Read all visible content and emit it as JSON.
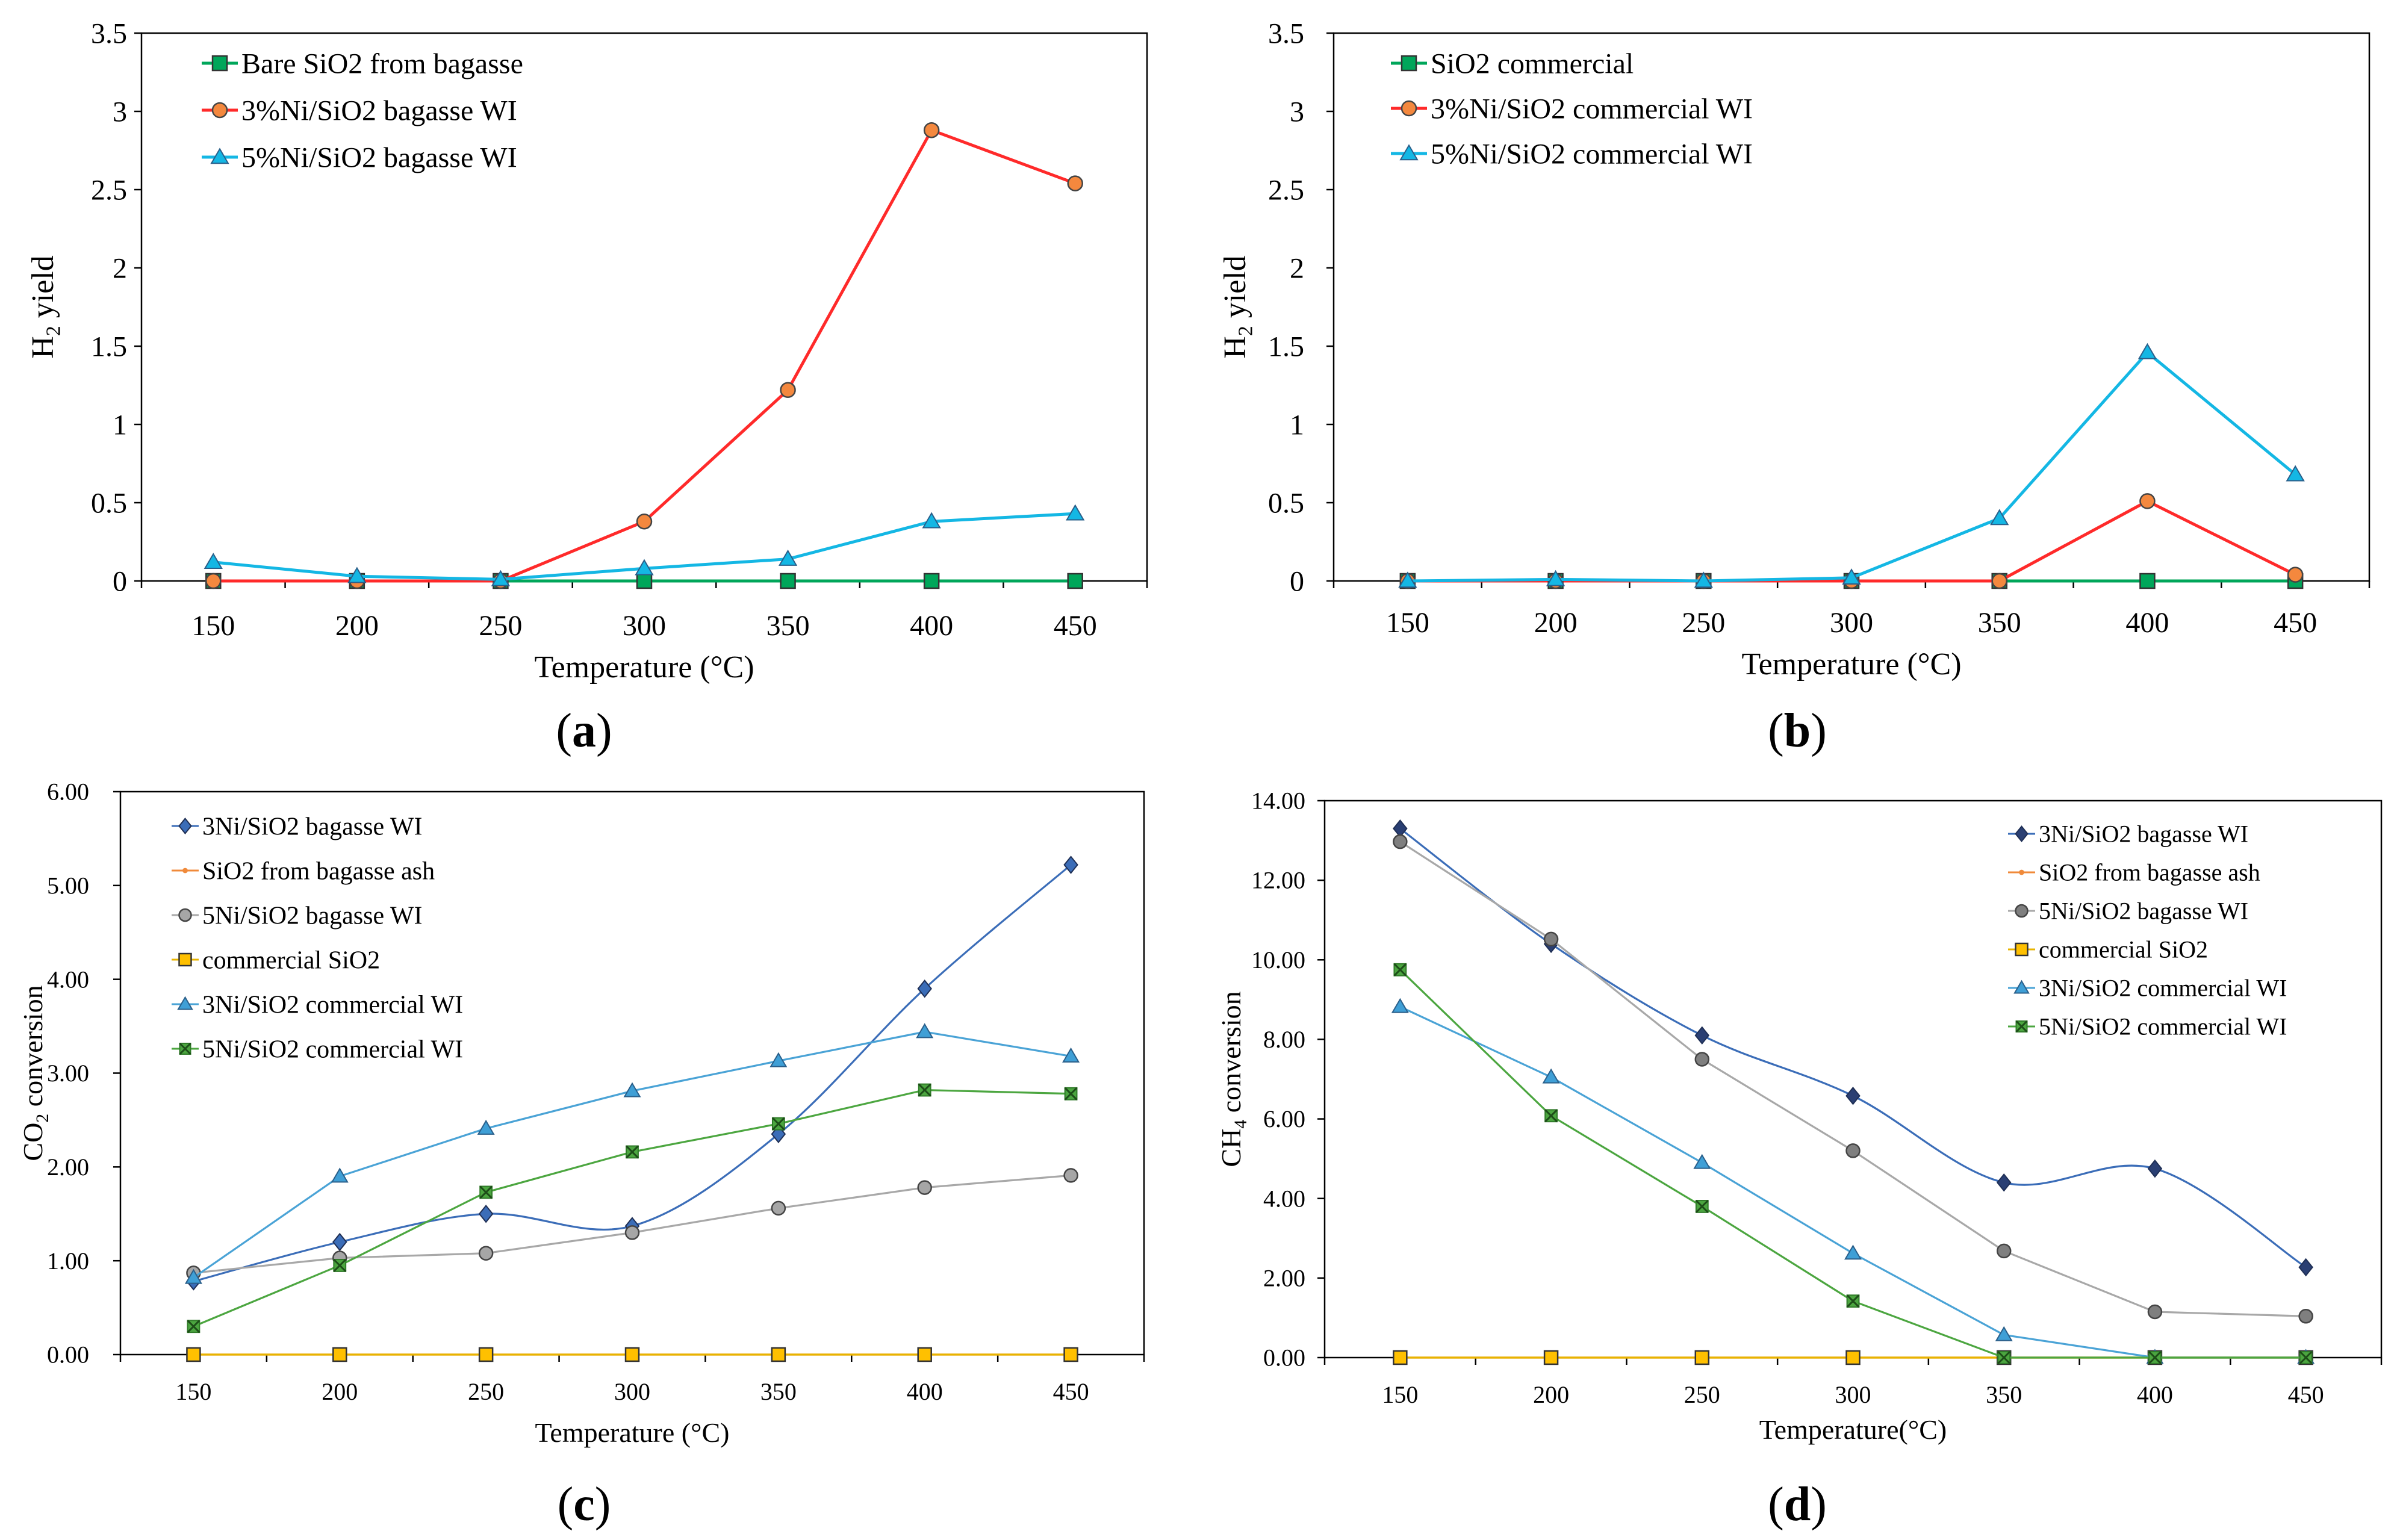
{
  "chart_data": [
    {
      "panel": "a",
      "caption_letter": "a",
      "type": "line",
      "xlabel": "Temperature (°C)",
      "ylabel_main": "H",
      "ylabel_sub": "2",
      "ylabel_rest": " yield",
      "x": [
        150,
        200,
        250,
        300,
        350,
        400,
        450
      ],
      "ylim": [
        0,
        3.5
      ],
      "yticks": [
        0,
        0.5,
        1,
        1.5,
        2,
        2.5,
        3,
        3.5
      ],
      "ytick_labels": [
        "0",
        "0.5",
        "1",
        "1.5",
        "2",
        "2.5",
        "3",
        "3.5"
      ],
      "grid": false,
      "legend_position": "top-left",
      "series": [
        {
          "name": "Bare SiO2 from bagasse",
          "marker": "square",
          "color": "#00a65a",
          "fill": "#00a65a",
          "smooth": false,
          "values": [
            0,
            0,
            0,
            0,
            0,
            0,
            0
          ]
        },
        {
          "name": "3%Ni/SiO2 bagasse WI",
          "marker": "circle",
          "color": "#ff2a2a",
          "fill": "#f4883e",
          "smooth": false,
          "values": [
            0,
            0,
            0,
            0.38,
            1.22,
            2.88,
            2.54
          ]
        },
        {
          "name": "5%Ni/SiO2 bagasse WI",
          "marker": "triangle",
          "color": "#14b7e4",
          "fill": "#14b7e4",
          "smooth": false,
          "values": [
            0.12,
            0.03,
            0.01,
            0.08,
            0.14,
            0.38,
            0.43
          ]
        }
      ]
    },
    {
      "panel": "b",
      "caption_letter": "b",
      "type": "line",
      "xlabel": "Temperature (°C)",
      "ylabel_main": "H",
      "ylabel_sub": "2",
      "ylabel_rest": " yield",
      "x": [
        150,
        200,
        250,
        300,
        350,
        400,
        450
      ],
      "ylim": [
        0,
        3.5
      ],
      "yticks": [
        0,
        0.5,
        1,
        1.5,
        2,
        2.5,
        3,
        3.5
      ],
      "ytick_labels": [
        "0",
        "0.5",
        "1",
        "1.5",
        "2",
        "2.5",
        "3",
        "3.5"
      ],
      "grid": false,
      "legend_position": "top-left",
      "series": [
        {
          "name": "SiO2 commercial",
          "marker": "square",
          "color": "#00a65a",
          "fill": "#00a65a",
          "smooth": false,
          "values": [
            0,
            0,
            0,
            0,
            0,
            0,
            0
          ]
        },
        {
          "name": "3%Ni/SiO2 commercial WI",
          "marker": "circle",
          "color": "#ff2a2a",
          "fill": "#f4883e",
          "smooth": false,
          "values": [
            0,
            0,
            0,
            0,
            0,
            0.51,
            0.04
          ]
        },
        {
          "name": "5%Ni/SiO2 commercial WI",
          "marker": "triangle",
          "color": "#14b7e4",
          "fill": "#14b7e4",
          "smooth": false,
          "values": [
            0,
            0.01,
            0,
            0.02,
            0.4,
            1.46,
            0.68
          ]
        }
      ]
    },
    {
      "panel": "c",
      "caption_letter": "c",
      "type": "line",
      "xlabel": "Temperature (°C)",
      "ylabel_main": "CO",
      "ylabel_sub": "2",
      "ylabel_rest": " conversion",
      "x": [
        150,
        200,
        250,
        300,
        350,
        400,
        450
      ],
      "ylim": [
        0,
        6
      ],
      "yticks": [
        0,
        1,
        2,
        3,
        4,
        5,
        6
      ],
      "ytick_labels": [
        "0.00",
        "1.00",
        "2.00",
        "3.00",
        "4.00",
        "5.00",
        "6.00"
      ],
      "grid": false,
      "legend_position": "top-left",
      "series": [
        {
          "name": "3Ni/SiO2 bagasse WI",
          "marker": "diamond",
          "color": "#3b6db8",
          "fill": "#3b6db8",
          "smooth": true,
          "values": [
            0.78,
            1.2,
            1.5,
            1.37,
            2.35,
            3.9,
            5.22
          ]
        },
        {
          "name": "SiO2 from bagasse ash",
          "marker": "dot",
          "color": "#f08a3a",
          "fill": "#f08a3a",
          "smooth": false,
          "values": [
            0,
            0,
            0,
            0,
            0,
            0,
            0
          ]
        },
        {
          "name": "5Ni/SiO2 bagasse WI",
          "marker": "circle",
          "color": "#a8a8a8",
          "fill": "#a6a6a6",
          "smooth": false,
          "values": [
            0.87,
            1.03,
            1.08,
            1.3,
            1.56,
            1.78,
            1.91
          ]
        },
        {
          "name": "commercial  SiO2",
          "marker": "square",
          "color": "#e8b400",
          "fill": "#ffc000",
          "smooth": false,
          "values": [
            0,
            0,
            0,
            0,
            0,
            0,
            0
          ]
        },
        {
          "name": "3Ni/SiO2 commercial WI",
          "marker": "triangle",
          "color": "#4aa3d6",
          "fill": "#3f9fd6",
          "smooth": false,
          "values": [
            0.82,
            1.9,
            2.41,
            2.81,
            3.13,
            3.44,
            3.18
          ]
        },
        {
          "name": "5Ni/SiO2 commercial WI",
          "marker": "star",
          "color": "#4ca640",
          "fill": "#4ca640",
          "smooth": false,
          "values": [
            0.3,
            0.95,
            1.73,
            2.16,
            2.46,
            2.82,
            2.78
          ]
        }
      ]
    },
    {
      "panel": "d",
      "caption_letter": "d",
      "type": "line",
      "xlabel": "Temperature(°C)",
      "ylabel_main": "CH",
      "ylabel_sub": "4",
      "ylabel_rest": " conversion",
      "x": [
        150,
        200,
        250,
        300,
        350,
        400,
        450
      ],
      "ylim": [
        0,
        14
      ],
      "yticks": [
        0,
        2,
        4,
        6,
        8,
        10,
        12,
        14
      ],
      "ytick_labels": [
        "0.00",
        "2.00",
        "4.00",
        "6.00",
        "8.00",
        "10.00",
        "12.00",
        "14.00"
      ],
      "grid": false,
      "legend_position": "top-right",
      "series": [
        {
          "name": "3Ni/SiO2 bagasse WI",
          "marker": "diamond",
          "color": "#3b6db8",
          "fill": "#2a3f73",
          "smooth": true,
          "values": [
            13.3,
            10.4,
            8.1,
            6.58,
            4.4,
            4.75,
            2.27
          ]
        },
        {
          "name": "SiO2 from bagasse ash",
          "marker": "dot",
          "color": "#f08a3a",
          "fill": "#f08a3a",
          "smooth": false,
          "values": [
            0,
            0,
            0,
            0,
            0,
            0,
            0
          ]
        },
        {
          "name": "5Ni/SiO2 bagasse WI",
          "marker": "circle",
          "color": "#a8a8a8",
          "fill": "#7f7f7f",
          "smooth": false,
          "values": [
            12.97,
            10.52,
            7.5,
            5.2,
            2.68,
            1.15,
            1.04
          ]
        },
        {
          "name": "commercial SiO2",
          "marker": "square",
          "color": "#e8b400",
          "fill": "#ffc000",
          "smooth": false,
          "values": [
            0,
            0,
            0,
            0,
            0,
            0,
            0
          ]
        },
        {
          "name": "3Ni/SiO2 commercial WI",
          "marker": "triangle",
          "color": "#4aa3d6",
          "fill": "#3f9fd6",
          "smooth": false,
          "values": [
            8.82,
            7.05,
            4.9,
            2.62,
            0.57,
            0,
            0
          ]
        },
        {
          "name": "5Ni/SiO2 commercial WI",
          "marker": "star",
          "color": "#4ca640",
          "fill": "#4ca640",
          "smooth": false,
          "values": [
            9.75,
            6.08,
            3.8,
            1.42,
            0,
            0,
            0
          ]
        }
      ]
    }
  ]
}
